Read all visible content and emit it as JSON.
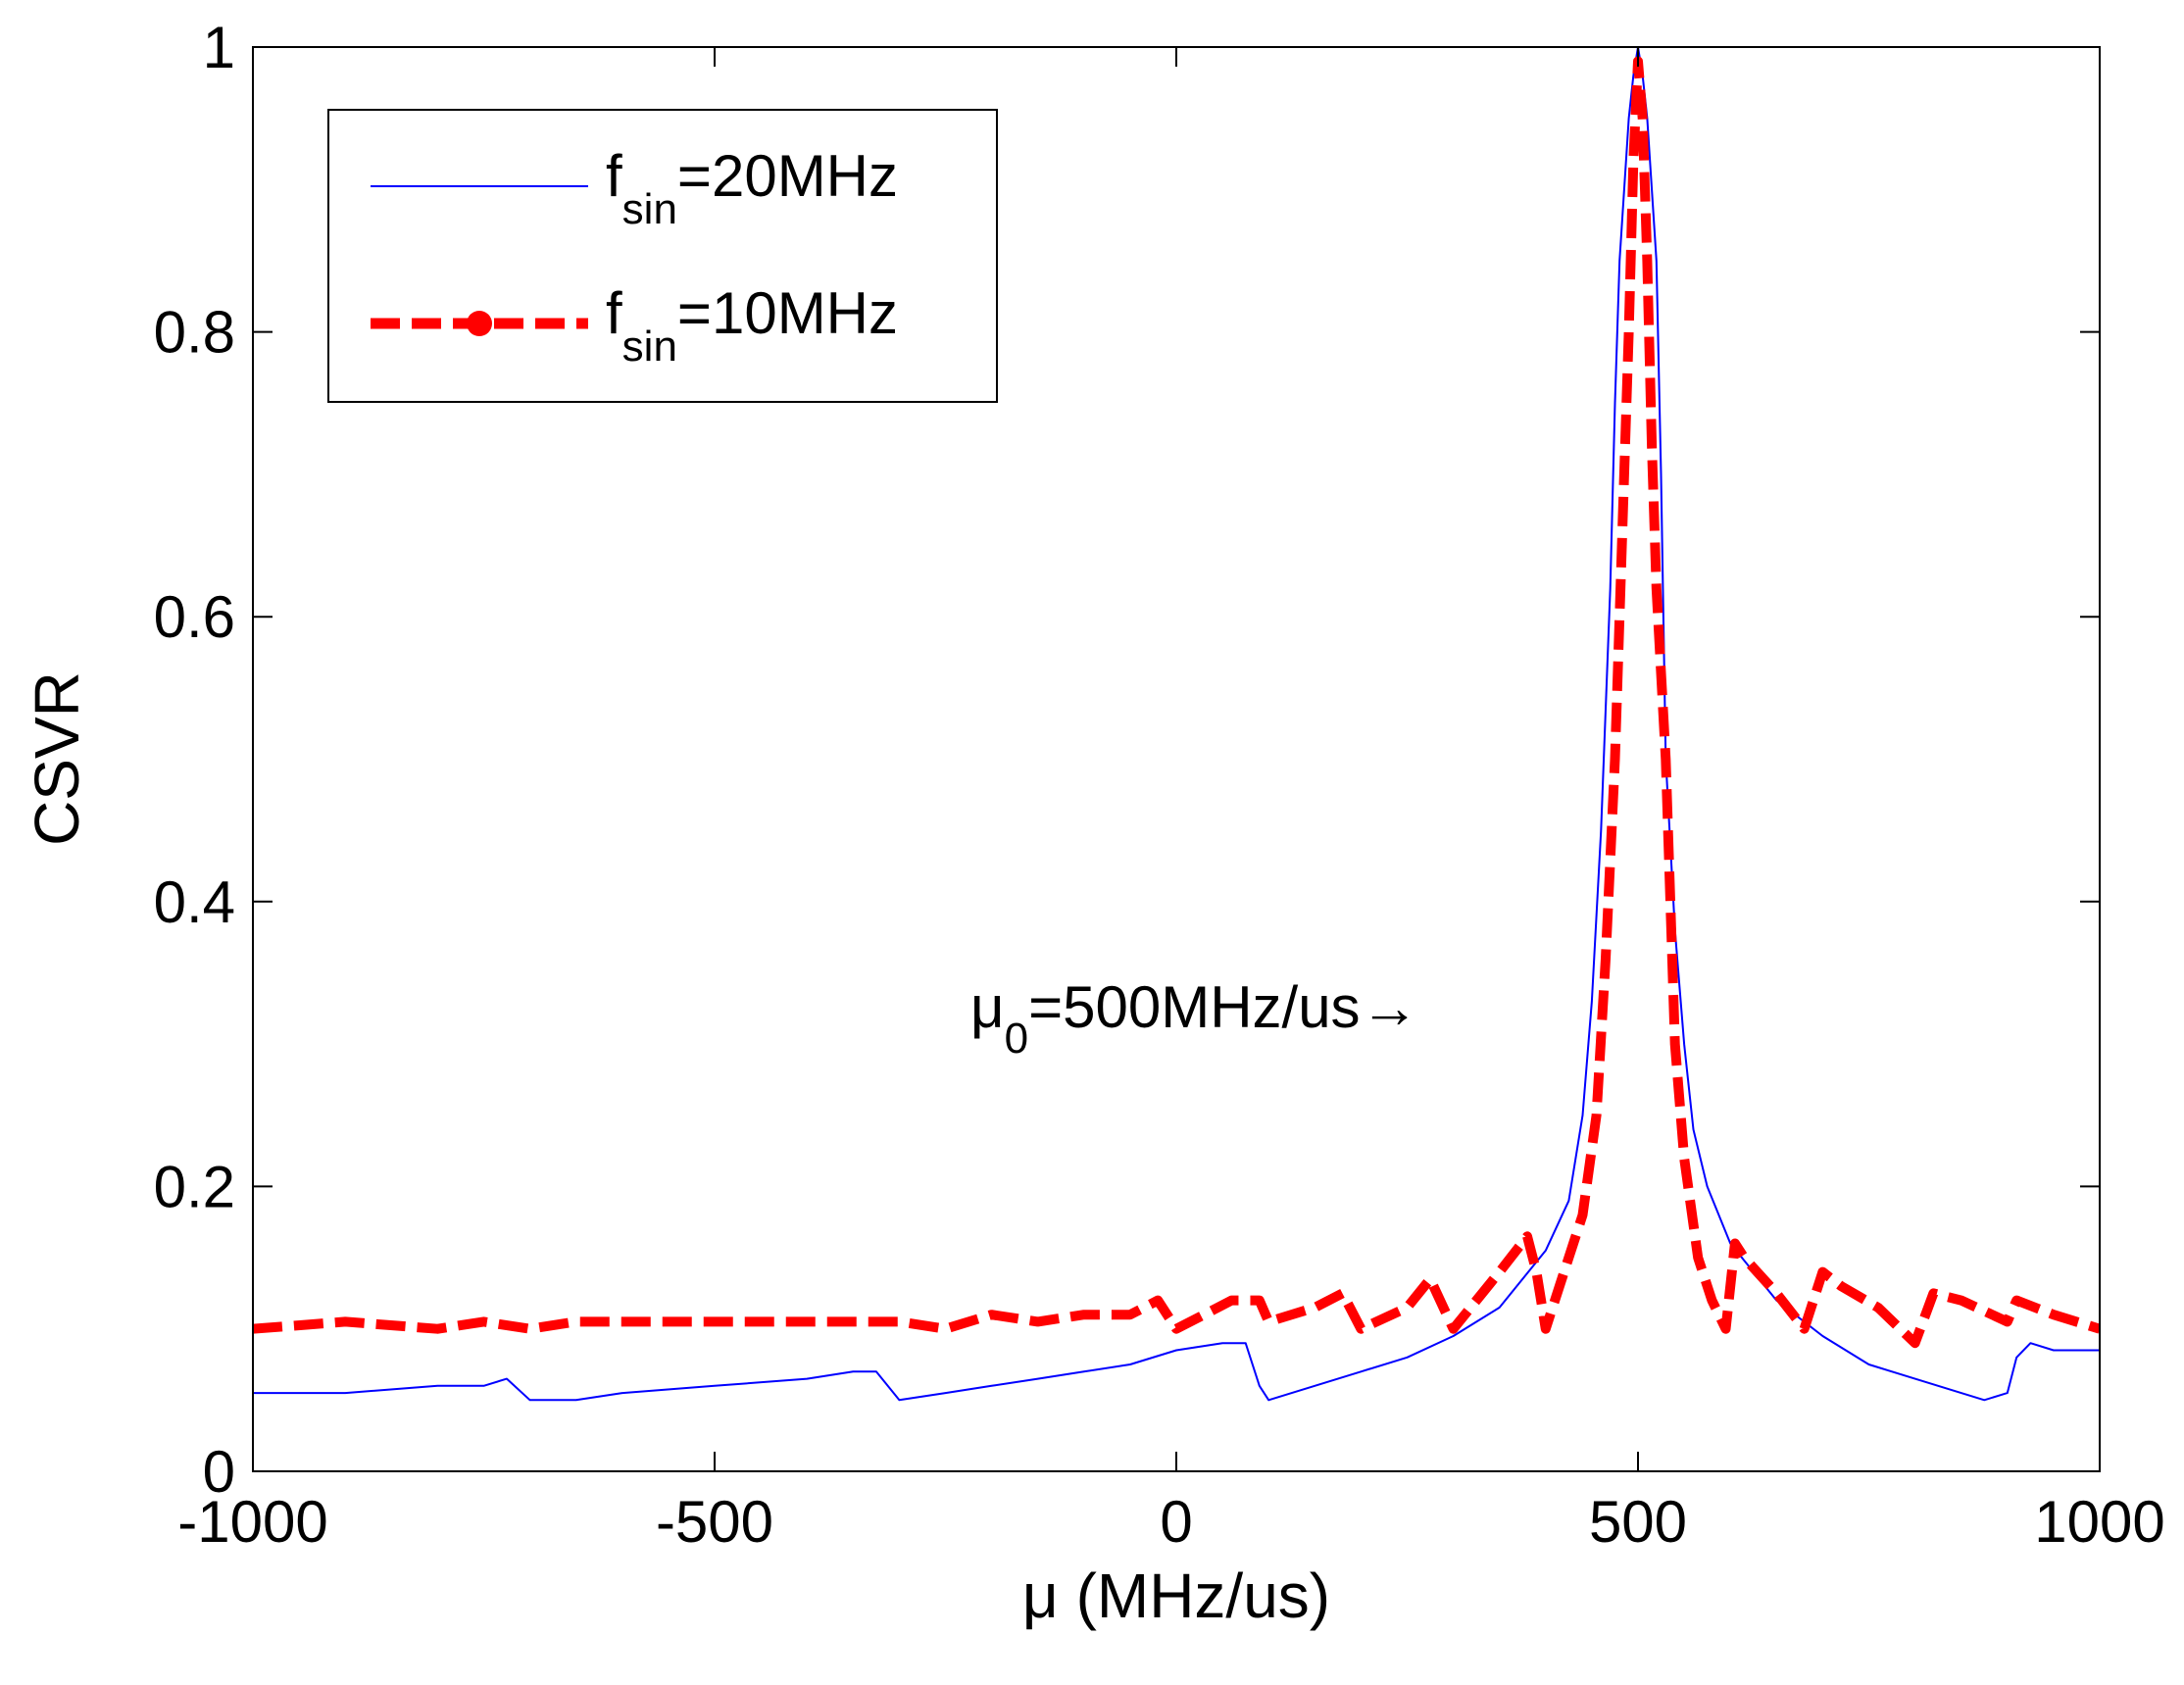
{
  "chart_data": {
    "type": "line",
    "title": "",
    "xlabel": "μ (MHz/us)",
    "ylabel": "CSVR",
    "xlim": [
      -1000,
      1000
    ],
    "ylim": [
      0,
      1
    ],
    "xticks": [
      -1000,
      -500,
      0,
      500,
      1000
    ],
    "yticks": [
      0,
      0.2,
      0.4,
      0.6,
      0.8,
      1
    ],
    "xtick_labels": [
      "-1000",
      "-500",
      "0",
      "500",
      "1000"
    ],
    "ytick_labels": [
      "0",
      "0.2",
      "0.4",
      "0.6",
      "0.8",
      "1"
    ],
    "grid": false,
    "legend_position": "top-left",
    "legend": [
      {
        "base": "f",
        "sub": "sin",
        "rest": "=20MHz"
      },
      {
        "base": "f",
        "sub": "sin",
        "rest": "=10MHz"
      }
    ],
    "annotation": {
      "base": "μ",
      "sub": "0",
      "rest": "=500MHz/us→",
      "x": 330,
      "y": 0.32
    },
    "series": [
      {
        "name": "f_sin=20MHz",
        "color": "#0000ff",
        "style": "solid",
        "x": [
          -1000,
          -900,
          -800,
          -750,
          -725,
          -700,
          -650,
          -600,
          -500,
          -400,
          -350,
          -325,
          -300,
          -250,
          -200,
          -150,
          -100,
          -50,
          0,
          50,
          75,
          90,
          100,
          150,
          200,
          250,
          300,
          350,
          400,
          425,
          440,
          450,
          460,
          470,
          475,
          480,
          485,
          490,
          495,
          500,
          505,
          510,
          515,
          520,
          525,
          530,
          540,
          550,
          560,
          575,
          600,
          650,
          700,
          750,
          800,
          850,
          875,
          900,
          910,
          925,
          950,
          1000
        ],
        "y": [
          0.055,
          0.055,
          0.06,
          0.06,
          0.065,
          0.05,
          0.05,
          0.055,
          0.06,
          0.065,
          0.07,
          0.07,
          0.05,
          0.055,
          0.06,
          0.065,
          0.07,
          0.075,
          0.085,
          0.09,
          0.09,
          0.06,
          0.05,
          0.06,
          0.07,
          0.08,
          0.095,
          0.115,
          0.155,
          0.19,
          0.25,
          0.33,
          0.45,
          0.62,
          0.75,
          0.85,
          0.9,
          0.95,
          0.98,
          1.0,
          0.98,
          0.95,
          0.9,
          0.85,
          0.7,
          0.5,
          0.38,
          0.3,
          0.24,
          0.2,
          0.16,
          0.12,
          0.095,
          0.075,
          0.065,
          0.055,
          0.05,
          0.055,
          0.08,
          0.09,
          0.085,
          0.085
        ]
      },
      {
        "name": "f_sin=10MHz",
        "color": "#ff0000",
        "style": "dashed",
        "x": [
          -1000,
          -900,
          -800,
          -750,
          -700,
          -650,
          -600,
          -500,
          -400,
          -300,
          -250,
          -200,
          -150,
          -100,
          -50,
          -20,
          0,
          30,
          60,
          90,
          100,
          150,
          180,
          200,
          250,
          275,
          300,
          350,
          380,
          390,
          400,
          420,
          440,
          455,
          465,
          475,
          480,
          485,
          490,
          495,
          500,
          505,
          510,
          515,
          520,
          530,
          540,
          550,
          565,
          580,
          595,
          605,
          615,
          650,
          680,
          700,
          720,
          760,
          800,
          820,
          850,
          900,
          910,
          950,
          1000
        ],
        "y": [
          0.1,
          0.105,
          0.1,
          0.105,
          0.1,
          0.105,
          0.105,
          0.105,
          0.105,
          0.105,
          0.1,
          0.11,
          0.105,
          0.11,
          0.11,
          0.12,
          0.1,
          0.11,
          0.12,
          0.12,
          0.105,
          0.115,
          0.125,
          0.1,
          0.115,
          0.135,
          0.1,
          0.14,
          0.165,
          0.14,
          0.1,
          0.14,
          0.18,
          0.25,
          0.36,
          0.5,
          0.6,
          0.7,
          0.8,
          0.92,
          0.99,
          0.95,
          0.85,
          0.72,
          0.62,
          0.5,
          0.3,
          0.22,
          0.15,
          0.12,
          0.1,
          0.16,
          0.15,
          0.125,
          0.1,
          0.14,
          0.13,
          0.115,
          0.09,
          0.125,
          0.12,
          0.105,
          0.12,
          0.11,
          0.1
        ]
      }
    ]
  }
}
